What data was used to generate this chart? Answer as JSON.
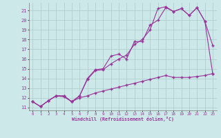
{
  "xlabel": "Windchill (Refroidissement éolien,°C)",
  "bg_color": "#cde8e8",
  "grid_color": "#aacccc",
  "line_color": "#993399",
  "xlim": [
    -0.5,
    23.5
  ],
  "ylim": [
    10.7,
    21.8
  ],
  "xticks": [
    0,
    1,
    2,
    3,
    4,
    5,
    6,
    7,
    8,
    9,
    10,
    11,
    12,
    13,
    14,
    15,
    16,
    17,
    18,
    19,
    20,
    21,
    22,
    23
  ],
  "yticks": [
    11,
    12,
    13,
    14,
    15,
    16,
    17,
    18,
    19,
    20,
    21
  ],
  "line1_x": [
    0,
    1,
    2,
    3,
    4,
    5,
    6,
    7,
    8,
    9,
    10,
    11,
    12,
    13,
    14,
    15,
    16,
    17,
    18,
    19,
    20,
    21,
    22,
    23
  ],
  "line1_y": [
    11.6,
    11.1,
    11.7,
    12.2,
    12.2,
    11.6,
    12.2,
    14.0,
    14.9,
    15.0,
    16.3,
    16.5,
    16.0,
    17.8,
    17.8,
    19.5,
    20.0,
    21.3,
    20.9,
    21.2,
    20.5,
    21.3,
    19.9,
    17.4
  ],
  "line2_x": [
    0,
    1,
    2,
    3,
    4,
    5,
    6,
    7,
    8,
    9,
    10,
    11,
    12,
    13,
    14,
    15,
    16,
    17,
    18,
    19,
    20,
    21,
    22,
    23
  ],
  "line2_y": [
    11.6,
    11.1,
    11.7,
    12.2,
    12.2,
    11.6,
    12.2,
    13.9,
    14.8,
    14.9,
    15.5,
    16.0,
    16.4,
    17.5,
    18.0,
    19.0,
    21.2,
    21.4,
    20.9,
    21.2,
    20.5,
    21.3,
    19.9,
    14.5
  ],
  "line3_x": [
    0,
    1,
    2,
    3,
    4,
    5,
    6,
    7,
    8,
    9,
    10,
    11,
    12,
    13,
    14,
    15,
    16,
    17,
    18,
    19,
    20,
    21,
    22,
    23
  ],
  "line3_y": [
    11.6,
    11.1,
    11.7,
    12.2,
    12.1,
    11.6,
    12.0,
    12.2,
    12.5,
    12.7,
    12.9,
    13.1,
    13.3,
    13.5,
    13.7,
    13.9,
    14.1,
    14.3,
    14.1,
    14.1,
    14.1,
    14.2,
    14.3,
    14.5
  ]
}
